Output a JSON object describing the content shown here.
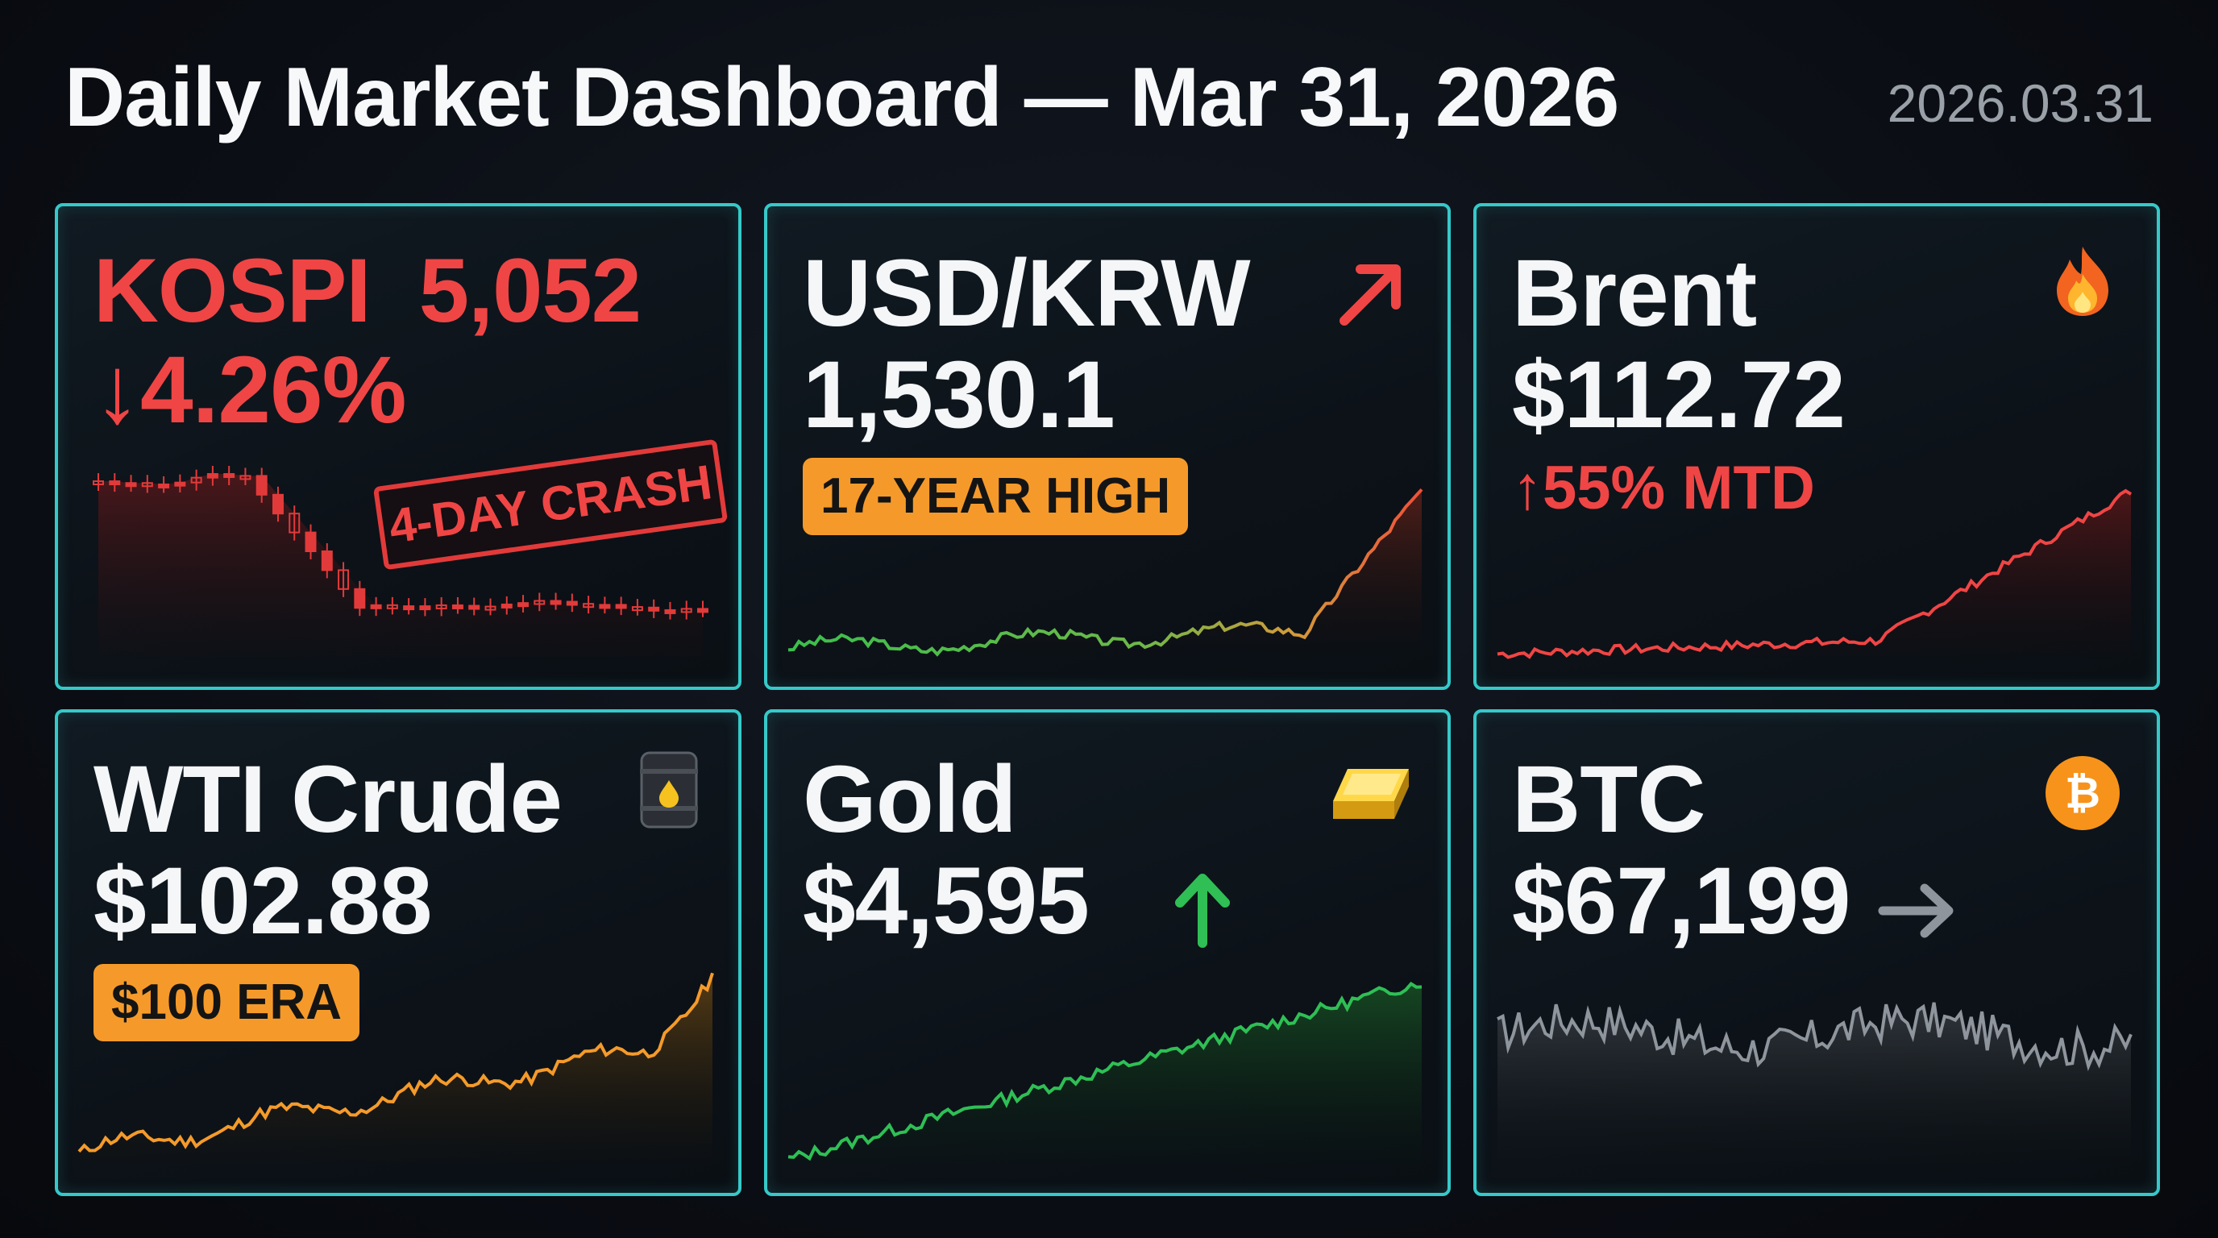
{
  "header": {
    "title": "Daily Market Dashboard — Mar 31, 2026",
    "date": "2026.03.31"
  },
  "colors": {
    "card_border": "#36c9c9",
    "down_red": "#f04545",
    "up_green": "#2fbf55",
    "badge_orange": "#f59a2a",
    "neutral_grey": "#8f959c"
  },
  "cards": [
    {
      "id": "kospi",
      "name": "KOSPI",
      "price": "5,052",
      "change": "↓4.26%",
      "stamp": "4-DAY CRASH",
      "chart_type": "candlestick",
      "trend": "down"
    },
    {
      "id": "usdkrw",
      "name": "USD/KRW",
      "price": "1,530.1",
      "badge": "17-YEAR HIGH",
      "icon": "arrow-up-right-icon",
      "trend": "up"
    },
    {
      "id": "brent",
      "name": "Brent",
      "price": "$112.72",
      "change": "↑55% MTD",
      "icon": "fire-icon",
      "trend": "up"
    },
    {
      "id": "wti",
      "name": "WTI Crude",
      "price": "$102.88",
      "badge": "$100 ERA",
      "icon": "oil-barrel-icon",
      "trend": "up"
    },
    {
      "id": "gold",
      "name": "Gold",
      "price": "$4,595",
      "icon": "gold-bar-icon",
      "direction_icon": "arrow-up-icon",
      "trend": "up"
    },
    {
      "id": "btc",
      "name": "BTC",
      "price": "$67,199",
      "icon": "bitcoin-icon",
      "direction_icon": "arrow-right-icon",
      "trend": "flat"
    }
  ]
}
